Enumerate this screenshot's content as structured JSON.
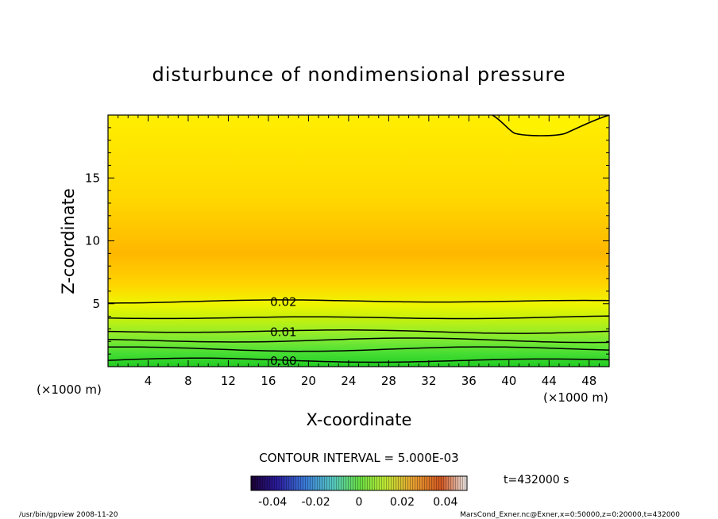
{
  "chart_data": {
    "type": "contour",
    "title": "disturbunce of nondimensional pressure",
    "xlabel": "X-coordinate",
    "ylabel": "Z-coordinate",
    "x_unit": "(×1000 m)",
    "x_unit_right": "(×1000 m)",
    "xlim": [
      0,
      50
    ],
    "ylim": [
      0,
      20
    ],
    "x_ticks": [
      4,
      8,
      12,
      16,
      20,
      24,
      28,
      32,
      36,
      40,
      44,
      48
    ],
    "y_ticks": [
      5,
      10,
      15
    ],
    "contour_labels": [
      {
        "value": "0.02",
        "x": 17.5,
        "z": 5.2
      },
      {
        "value": "0.01",
        "x": 17.5,
        "z": 2.8
      },
      {
        "value": "0.00",
        "x": 17.5,
        "z": 0.5
      }
    ],
    "contour_interval": "CONTOUR INTERVAL = 5.000E-03",
    "time_label": "t=432000 s",
    "colorbar": {
      "ticks": [
        "-0.04",
        "-0.02",
        "0",
        "0.02",
        "0.04"
      ],
      "tick_values": [
        -0.04,
        -0.02,
        0,
        0.02,
        0.04
      ],
      "range": [
        -0.05,
        0.05
      ]
    },
    "field_profile": [
      {
        "z": 0.0,
        "value": -0.003,
        "color": "#22cc22"
      },
      {
        "z": 1.0,
        "value": 0.003,
        "color": "#44dd33"
      },
      {
        "z": 2.0,
        "value": 0.008,
        "color": "#77e833"
      },
      {
        "z": 3.0,
        "value": 0.012,
        "color": "#a3ee22"
      },
      {
        "z": 4.0,
        "value": 0.017,
        "color": "#ccf20a"
      },
      {
        "z": 5.0,
        "value": 0.021,
        "color": "#eef500"
      },
      {
        "z": 6.5,
        "value": 0.031,
        "color": "#ffd500"
      },
      {
        "z": 9.0,
        "value": 0.036,
        "color": "#ffb700"
      },
      {
        "z": 11.0,
        "value": 0.033,
        "color": "#ffc600"
      },
      {
        "z": 13.5,
        "value": 0.029,
        "color": "#ffd900"
      },
      {
        "z": 17.0,
        "value": 0.027,
        "color": "#ffe400"
      },
      {
        "z": 20.0,
        "value": 0.025,
        "color": "#ffef00"
      }
    ],
    "contour_lines": [
      {
        "z": 0.5
      },
      {
        "z": 1.4
      },
      {
        "z": 2.1
      },
      {
        "z": 2.8
      },
      {
        "z": 3.9
      },
      {
        "z": 5.2
      }
    ]
  },
  "footer": {
    "left": "/usr/bin/gpview   2008-11-20",
    "right": "MarsCond_Exner.nc@Exner,x=0:50000,z=0:20000,t=432000"
  }
}
